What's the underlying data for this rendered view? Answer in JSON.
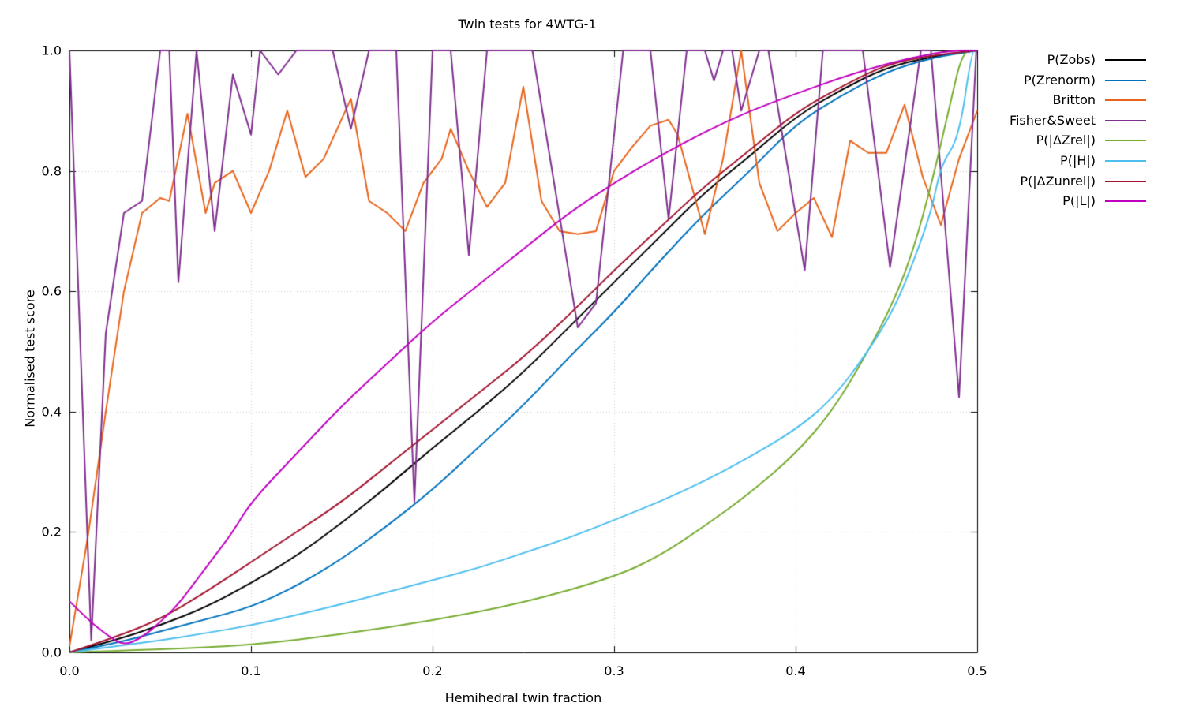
{
  "title": "Twin tests for 4WTG-1",
  "chart_data": {
    "type": "line",
    "title": "Twin tests for 4WTG-1",
    "xlabel": "Hemihedral twin fraction",
    "ylabel": "Normalised test score",
    "xlim": [
      0,
      0.5
    ],
    "ylim": [
      0,
      1
    ],
    "xticks": [
      {
        "v": 0.0,
        "label": "0.0"
      },
      {
        "v": 0.1,
        "label": "0.1"
      },
      {
        "v": 0.2,
        "label": "0.2"
      },
      {
        "v": 0.3,
        "label": "0.3"
      },
      {
        "v": 0.4,
        "label": "0.4"
      },
      {
        "v": 0.5,
        "label": "0.5"
      }
    ],
    "yticks": [
      {
        "v": 0.0,
        "label": "0.0"
      },
      {
        "v": 0.2,
        "label": "0.2"
      },
      {
        "v": 0.4,
        "label": "0.4"
      },
      {
        "v": 0.6,
        "label": "0.6"
      },
      {
        "v": 0.8,
        "label": "0.8"
      },
      {
        "v": 1.0,
        "label": "1.0"
      }
    ],
    "grid": true,
    "grid_color": "#c8c8c8",
    "legend_position": "outside-right",
    "series": [
      {
        "name": "P(Zobs)",
        "color": "#000000",
        "style": "smooth",
        "points": [
          [
            0,
            0
          ],
          [
            0.025,
            0.02
          ],
          [
            0.05,
            0.045
          ],
          [
            0.075,
            0.075
          ],
          [
            0.1,
            0.115
          ],
          [
            0.125,
            0.16
          ],
          [
            0.15,
            0.215
          ],
          [
            0.175,
            0.275
          ],
          [
            0.2,
            0.34
          ],
          [
            0.225,
            0.4
          ],
          [
            0.25,
            0.465
          ],
          [
            0.275,
            0.54
          ],
          [
            0.3,
            0.615
          ],
          [
            0.325,
            0.69
          ],
          [
            0.35,
            0.765
          ],
          [
            0.375,
            0.825
          ],
          [
            0.4,
            0.89
          ],
          [
            0.425,
            0.935
          ],
          [
            0.45,
            0.972
          ],
          [
            0.475,
            0.99
          ],
          [
            0.5,
            1
          ]
        ]
      },
      {
        "name": "P(Zrenorm)",
        "color": "#0072bd",
        "style": "smooth",
        "points": [
          [
            0,
            0
          ],
          [
            0.025,
            0.015
          ],
          [
            0.05,
            0.035
          ],
          [
            0.075,
            0.055
          ],
          [
            0.1,
            0.075
          ],
          [
            0.125,
            0.11
          ],
          [
            0.15,
            0.155
          ],
          [
            0.175,
            0.21
          ],
          [
            0.2,
            0.27
          ],
          [
            0.225,
            0.34
          ],
          [
            0.25,
            0.41
          ],
          [
            0.275,
            0.49
          ],
          [
            0.3,
            0.565
          ],
          [
            0.325,
            0.65
          ],
          [
            0.35,
            0.73
          ],
          [
            0.375,
            0.8
          ],
          [
            0.4,
            0.878
          ],
          [
            0.425,
            0.925
          ],
          [
            0.45,
            0.965
          ],
          [
            0.475,
            0.988
          ],
          [
            0.5,
            1
          ]
        ]
      },
      {
        "name": "Britton",
        "color": "#e8641b",
        "style": "jagged",
        "points": [
          [
            0,
            0.01
          ],
          [
            0.01,
            0.19
          ],
          [
            0.02,
            0.4
          ],
          [
            0.03,
            0.6
          ],
          [
            0.04,
            0.73
          ],
          [
            0.05,
            0.755
          ],
          [
            0.055,
            0.75
          ],
          [
            0.065,
            0.895
          ],
          [
            0.075,
            0.73
          ],
          [
            0.08,
            0.78
          ],
          [
            0.09,
            0.8
          ],
          [
            0.1,
            0.73
          ],
          [
            0.11,
            0.8
          ],
          [
            0.12,
            0.9
          ],
          [
            0.13,
            0.79
          ],
          [
            0.14,
            0.82
          ],
          [
            0.155,
            0.92
          ],
          [
            0.165,
            0.75
          ],
          [
            0.175,
            0.73
          ],
          [
            0.185,
            0.7
          ],
          [
            0.195,
            0.78
          ],
          [
            0.205,
            0.82
          ],
          [
            0.21,
            0.87
          ],
          [
            0.22,
            0.8
          ],
          [
            0.23,
            0.74
          ],
          [
            0.24,
            0.78
          ],
          [
            0.25,
            0.94
          ],
          [
            0.26,
            0.75
          ],
          [
            0.27,
            0.7
          ],
          [
            0.28,
            0.695
          ],
          [
            0.29,
            0.7
          ],
          [
            0.3,
            0.8
          ],
          [
            0.31,
            0.84
          ],
          [
            0.32,
            0.875
          ],
          [
            0.33,
            0.885
          ],
          [
            0.335,
            0.86
          ],
          [
            0.35,
            0.695
          ],
          [
            0.36,
            0.82
          ],
          [
            0.37,
            1.0
          ],
          [
            0.38,
            0.78
          ],
          [
            0.39,
            0.7
          ],
          [
            0.4,
            0.73
          ],
          [
            0.41,
            0.755
          ],
          [
            0.42,
            0.69
          ],
          [
            0.43,
            0.85
          ],
          [
            0.44,
            0.83
          ],
          [
            0.45,
            0.83
          ],
          [
            0.46,
            0.91
          ],
          [
            0.47,
            0.79
          ],
          [
            0.48,
            0.71
          ],
          [
            0.49,
            0.82
          ],
          [
            0.5,
            0.9
          ]
        ]
      },
      {
        "name": "Fisher&Sweet",
        "color": "#7e2f8e",
        "style": "jagged",
        "points": [
          [
            0,
            1
          ],
          [
            0.012,
            0.02
          ],
          [
            0.02,
            0.53
          ],
          [
            0.03,
            0.73
          ],
          [
            0.04,
            0.75
          ],
          [
            0.05,
            1
          ],
          [
            0.055,
            1
          ],
          [
            0.06,
            0.615
          ],
          [
            0.07,
            1
          ],
          [
            0.08,
            0.7
          ],
          [
            0.09,
            0.96
          ],
          [
            0.1,
            0.86
          ],
          [
            0.105,
            1
          ],
          [
            0.115,
            0.96
          ],
          [
            0.125,
            1
          ],
          [
            0.145,
            1
          ],
          [
            0.155,
            0.87
          ],
          [
            0.165,
            1
          ],
          [
            0.18,
            1
          ],
          [
            0.19,
            0.25
          ],
          [
            0.2,
            1
          ],
          [
            0.21,
            1
          ],
          [
            0.22,
            0.66
          ],
          [
            0.23,
            1
          ],
          [
            0.255,
            1
          ],
          [
            0.28,
            0.54
          ],
          [
            0.29,
            0.58
          ],
          [
            0.305,
            1
          ],
          [
            0.32,
            1
          ],
          [
            0.33,
            0.72
          ],
          [
            0.34,
            1
          ],
          [
            0.35,
            1
          ],
          [
            0.355,
            0.95
          ],
          [
            0.36,
            1
          ],
          [
            0.365,
            1
          ],
          [
            0.37,
            0.9
          ],
          [
            0.38,
            1
          ],
          [
            0.385,
            1
          ],
          [
            0.405,
            0.635
          ],
          [
            0.415,
            1
          ],
          [
            0.437,
            1
          ],
          [
            0.452,
            0.64
          ],
          [
            0.469,
            1
          ],
          [
            0.4745,
            1
          ],
          [
            0.49,
            0.424
          ],
          [
            0.4995,
            1
          ],
          [
            0.5,
            1
          ]
        ]
      },
      {
        "name": "P(|ΔZrel|)",
        "color": "#77ac30",
        "style": "smooth",
        "points": [
          [
            0,
            0
          ],
          [
            0.05,
            0.005
          ],
          [
            0.1,
            0.012
          ],
          [
            0.15,
            0.03
          ],
          [
            0.2,
            0.053
          ],
          [
            0.25,
            0.082
          ],
          [
            0.3,
            0.125
          ],
          [
            0.325,
            0.16
          ],
          [
            0.35,
            0.21
          ],
          [
            0.375,
            0.265
          ],
          [
            0.4,
            0.33
          ],
          [
            0.42,
            0.4
          ],
          [
            0.44,
            0.5
          ],
          [
            0.455,
            0.59
          ],
          [
            0.465,
            0.67
          ],
          [
            0.475,
            0.78
          ],
          [
            0.485,
            0.91
          ],
          [
            0.492,
            1
          ],
          [
            0.5,
            1
          ]
        ]
      },
      {
        "name": "P(|H|)",
        "color": "#4dbeee",
        "style": "smooth",
        "points": [
          [
            0,
            0
          ],
          [
            0.025,
            0.01
          ],
          [
            0.05,
            0.02
          ],
          [
            0.075,
            0.032
          ],
          [
            0.1,
            0.045
          ],
          [
            0.125,
            0.062
          ],
          [
            0.15,
            0.08
          ],
          [
            0.175,
            0.1
          ],
          [
            0.2,
            0.12
          ],
          [
            0.225,
            0.14
          ],
          [
            0.25,
            0.165
          ],
          [
            0.275,
            0.19
          ],
          [
            0.3,
            0.22
          ],
          [
            0.325,
            0.25
          ],
          [
            0.35,
            0.285
          ],
          [
            0.375,
            0.325
          ],
          [
            0.4,
            0.37
          ],
          [
            0.42,
            0.42
          ],
          [
            0.44,
            0.5
          ],
          [
            0.455,
            0.575
          ],
          [
            0.465,
            0.65
          ],
          [
            0.475,
            0.735
          ],
          [
            0.48,
            0.81
          ],
          [
            0.49,
            0.855
          ],
          [
            0.497,
            1
          ],
          [
            0.5,
            1
          ]
        ]
      },
      {
        "name": "P(|ΔZunrel|)",
        "color": "#a2142f",
        "style": "smooth",
        "points": [
          [
            0,
            0
          ],
          [
            0.025,
            0.025
          ],
          [
            0.05,
            0.055
          ],
          [
            0.075,
            0.1
          ],
          [
            0.1,
            0.15
          ],
          [
            0.125,
            0.2
          ],
          [
            0.15,
            0.25
          ],
          [
            0.175,
            0.31
          ],
          [
            0.2,
            0.37
          ],
          [
            0.225,
            0.43
          ],
          [
            0.25,
            0.49
          ],
          [
            0.275,
            0.56
          ],
          [
            0.3,
            0.635
          ],
          [
            0.325,
            0.705
          ],
          [
            0.35,
            0.775
          ],
          [
            0.375,
            0.835
          ],
          [
            0.4,
            0.897
          ],
          [
            0.425,
            0.94
          ],
          [
            0.45,
            0.977
          ],
          [
            0.475,
            0.992
          ],
          [
            0.5,
            1
          ]
        ]
      },
      {
        "name": "P(|L|)",
        "color": "#bf00bf",
        "style": "smooth",
        "points": [
          [
            0,
            0.085
          ],
          [
            0.01,
            0.055
          ],
          [
            0.02,
            0.03
          ],
          [
            0.03,
            0.011
          ],
          [
            0.04,
            0.025
          ],
          [
            0.05,
            0.05
          ],
          [
            0.06,
            0.08
          ],
          [
            0.07,
            0.12
          ],
          [
            0.08,
            0.16
          ],
          [
            0.09,
            0.2
          ],
          [
            0.1,
            0.25
          ],
          [
            0.125,
            0.33
          ],
          [
            0.15,
            0.41
          ],
          [
            0.175,
            0.48
          ],
          [
            0.2,
            0.55
          ],
          [
            0.225,
            0.61
          ],
          [
            0.25,
            0.67
          ],
          [
            0.275,
            0.73
          ],
          [
            0.3,
            0.78
          ],
          [
            0.325,
            0.825
          ],
          [
            0.35,
            0.865
          ],
          [
            0.375,
            0.9
          ],
          [
            0.4,
            0.928
          ],
          [
            0.425,
            0.955
          ],
          [
            0.45,
            0.978
          ],
          [
            0.475,
            0.995
          ],
          [
            0.488,
            1
          ],
          [
            0.5,
            1
          ]
        ]
      }
    ]
  }
}
